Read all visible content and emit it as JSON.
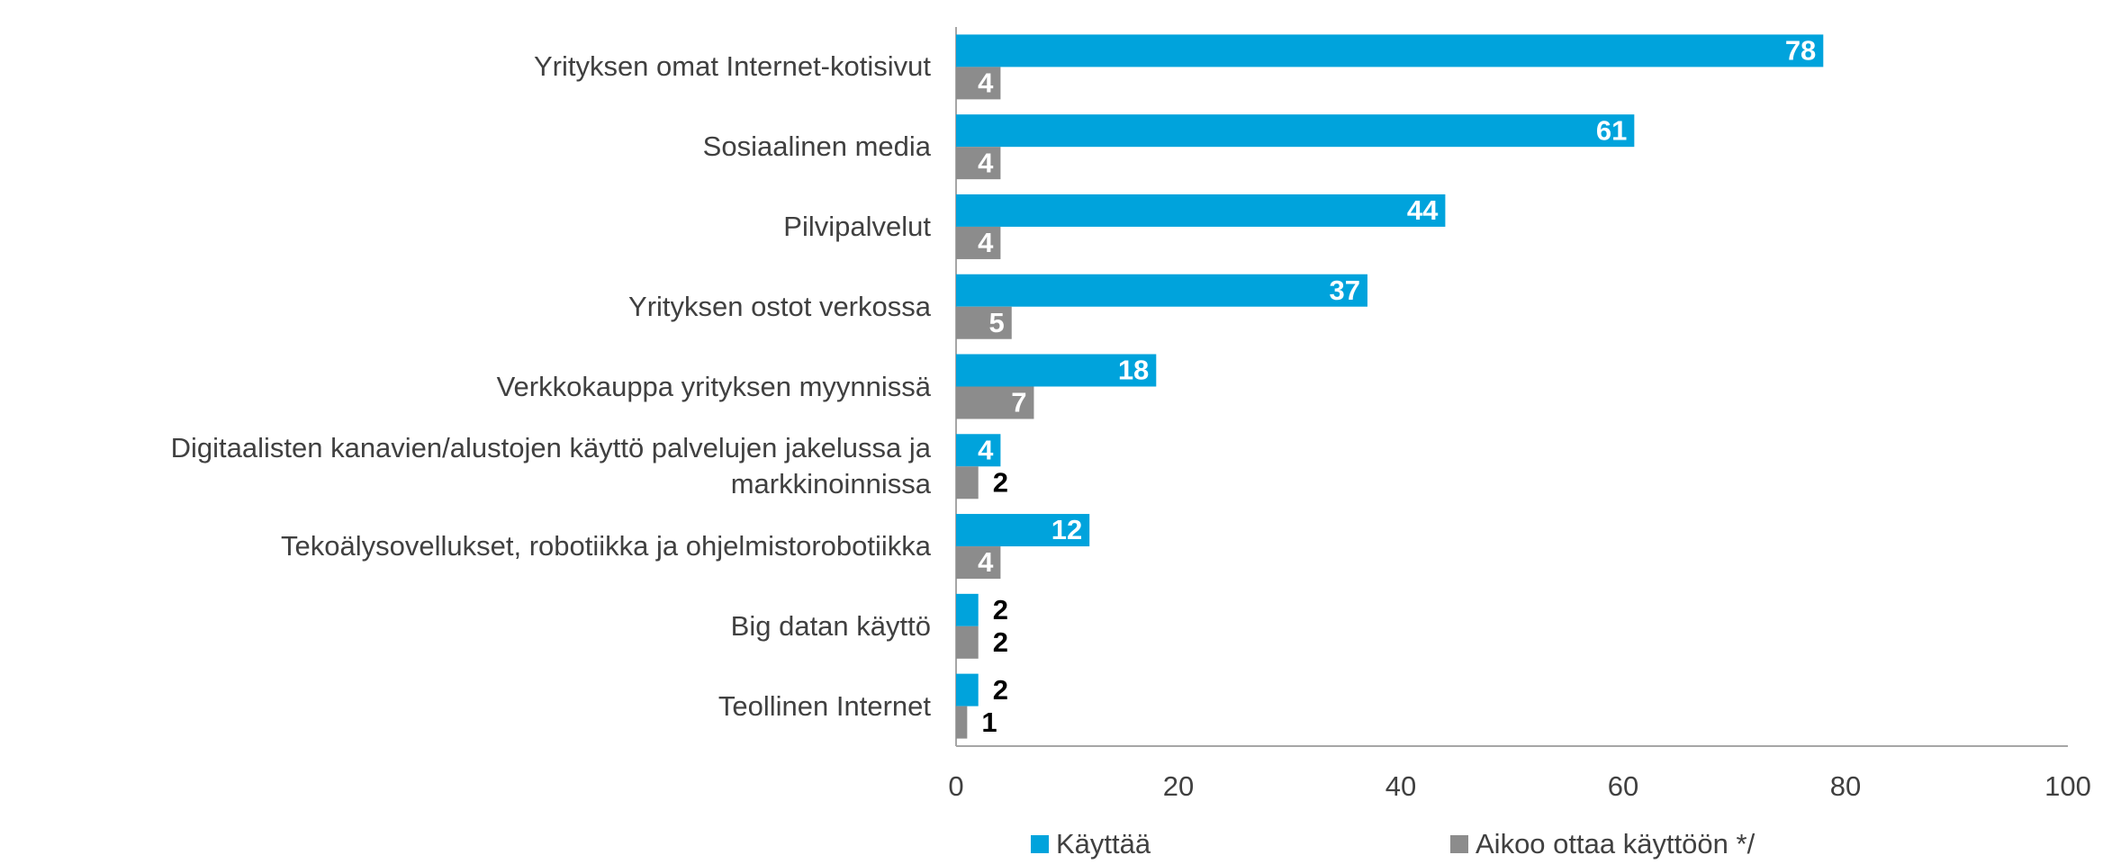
{
  "chart_data": {
    "type": "hbar",
    "categories": [
      "Yrityksen omat Internet-kotisivut",
      "Sosiaalinen media",
      "Pilvipalvelut",
      "Yrityksen ostot verkossa",
      "Verkkokauppa yrityksen myynnissä",
      "Digitaalisten kanavien/alustojen käyttö palvelujen jakelussa ja markkinoinnissa",
      "Tekoälysovellukset, robotiikka ja ohjelmistorobotiikka",
      "Big datan käyttö",
      "Teollinen Internet"
    ],
    "series": [
      {
        "name": "Käyttää",
        "color": "#00a3dc",
        "values": [
          78,
          61,
          44,
          37,
          18,
          4,
          12,
          2,
          2
        ]
      },
      {
        "name": "Aikoo ottaa käyttöön */",
        "color": "#8c8c8c",
        "values": [
          4,
          4,
          4,
          5,
          7,
          2,
          4,
          2,
          1
        ]
      }
    ],
    "xlim": [
      0,
      100
    ],
    "xticks": [
      0,
      20,
      40,
      60,
      80,
      100
    ],
    "grid": false,
    "legend": "bottom"
  }
}
